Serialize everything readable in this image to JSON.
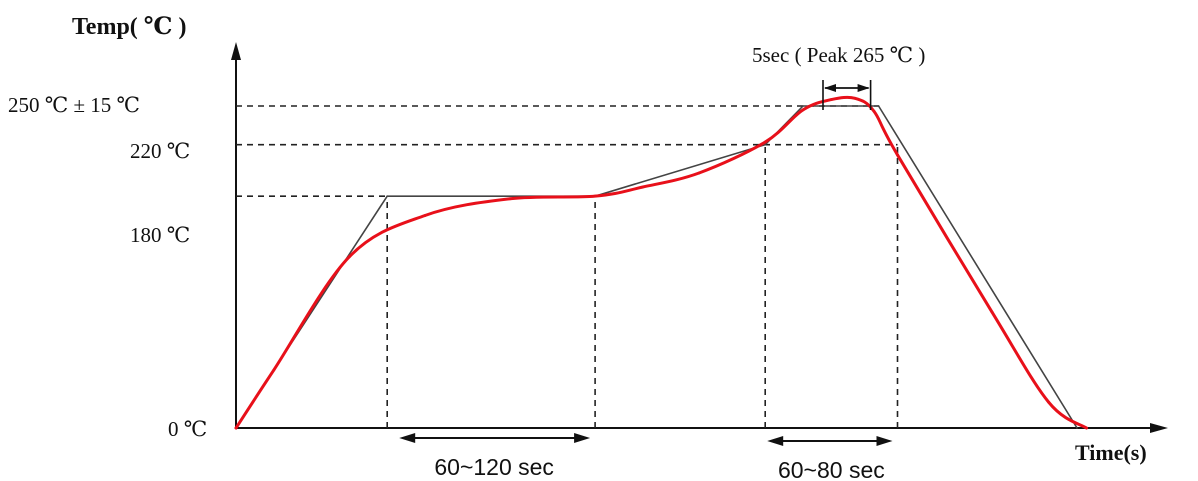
{
  "chart_data": {
    "type": "line",
    "title": "",
    "ylabel": "Temp( ℃ )",
    "xlabel": "Time(s)",
    "y_ticks": [
      "0 ℃",
      "180 ℃",
      "220 ℃",
      "250 ℃ ± 15 ℃"
    ],
    "grid": false,
    "legend": "none",
    "series": [
      {
        "style": "straight",
        "color": "#444444",
        "points": [
          [
            0,
            0
          ],
          [
            160,
            180
          ],
          [
            380,
            180
          ],
          [
            560,
            220
          ],
          [
            600,
            250
          ],
          [
            680,
            250
          ],
          [
            890,
            0
          ]
        ]
      },
      {
        "style": "smooth",
        "color": "#e8101a",
        "points": [
          [
            0,
            0
          ],
          [
            40,
            45
          ],
          [
            120,
            133
          ],
          [
            200,
            165
          ],
          [
            290,
            178
          ],
          [
            380,
            180
          ],
          [
            430,
            187
          ],
          [
            490,
            198
          ],
          [
            560,
            222
          ],
          [
            600,
            247
          ],
          [
            630,
            255
          ],
          [
            655,
            256
          ],
          [
            675,
            246
          ],
          [
            700,
            212
          ],
          [
            800,
            90
          ],
          [
            860,
            20
          ],
          [
            900,
            0
          ]
        ]
      }
    ],
    "reference_lines": [
      {
        "type": "h",
        "y": 180,
        "from_x": 0,
        "to_x": 160
      },
      {
        "type": "h",
        "y": 220,
        "from_x": 0,
        "to_x": 700
      },
      {
        "type": "h",
        "y": 250,
        "from_x": 0,
        "to_x": 680
      },
      {
        "type": "v",
        "x": 160,
        "from_y": 0,
        "to_y": 180
      },
      {
        "type": "v",
        "x": 380,
        "from_y": 0,
        "to_y": 180
      },
      {
        "type": "v",
        "x": 560,
        "from_y": 0,
        "to_y": 220
      },
      {
        "type": "v",
        "x": 700,
        "from_y": 0,
        "to_y": 220
      }
    ],
    "annotations": [
      {
        "text": "60~120 sec",
        "x_from": 160,
        "x_to": 380,
        "y": -10
      },
      {
        "text": "60~80 sec",
        "x_from": 560,
        "x_to": 700,
        "y": -10
      },
      {
        "text": "5sec ( Peak 265 ℃ )",
        "x_from": 600,
        "x_to": 680,
        "y": 265
      }
    ]
  }
}
